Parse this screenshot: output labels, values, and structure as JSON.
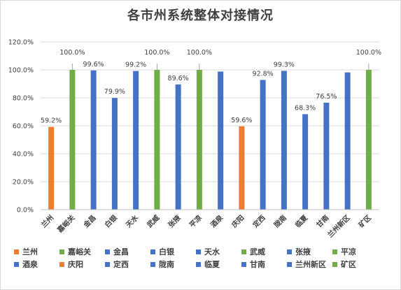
{
  "chart_data": {
    "type": "bar",
    "title": "各市州系统整体对接情况",
    "ylim": [
      0,
      120
    ],
    "yticks": [
      "0.0%",
      "20.0%",
      "40.0%",
      "60.0%",
      "80.0%",
      "100.0%",
      "120.0%"
    ],
    "grid": true,
    "legend_position": "bottom",
    "colors": {
      "orange": "#ED7D31",
      "green": "#70AD47",
      "blue": "#4472C4"
    },
    "categories": [
      "兰州",
      "嘉峪关",
      "金昌",
      "白银",
      "天水",
      "武威",
      "张掖",
      "平凉",
      "酒泉",
      "庆阳",
      "定西",
      "陇南",
      "临夏",
      "甘南",
      "兰州新区",
      "矿区"
    ],
    "values": [
      59.2,
      100.0,
      99.6,
      79.9,
      99.2,
      100.0,
      89.6,
      100.0,
      98.8,
      59.6,
      92.8,
      99.3,
      68.3,
      76.5,
      98.2,
      100.0
    ],
    "labels": [
      "59.2%",
      "100.0%",
      "99.6%",
      "79.9%",
      "99.2%",
      "100.0%",
      "89.6%",
      "100.0%",
      "98.8%",
      "59.6%",
      "92.8%",
      "99.3%",
      "68.3%",
      "76.5%",
      "98.2%",
      "100.0%"
    ],
    "label_shown": [
      true,
      true,
      true,
      true,
      true,
      true,
      true,
      true,
      false,
      true,
      true,
      true,
      true,
      true,
      false,
      true
    ],
    "bar_colors": [
      "#ED7D31",
      "#70AD47",
      "#4472C4",
      "#4472C4",
      "#4472C4",
      "#70AD47",
      "#4472C4",
      "#70AD47",
      "#4472C4",
      "#ED7D31",
      "#4472C4",
      "#4472C4",
      "#4472C4",
      "#4472C4",
      "#4472C4",
      "#70AD47"
    ]
  }
}
